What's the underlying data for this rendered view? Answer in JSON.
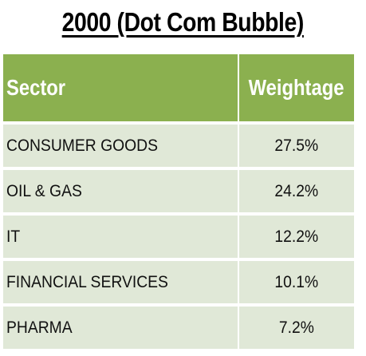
{
  "title": "2000 (Dot Com Bubble)",
  "table": {
    "headers": [
      "Sector",
      "Weightage"
    ],
    "rows": [
      {
        "sector": "CONSUMER GOODS",
        "weightage": "27.5%"
      },
      {
        "sector": "OIL & GAS",
        "weightage": "24.2%"
      },
      {
        "sector": "IT",
        "weightage": "12.2%"
      },
      {
        "sector": "FINANCIAL SERVICES",
        "weightage": "10.1%"
      },
      {
        "sector": "PHARMA",
        "weightage": "7.2%"
      }
    ]
  },
  "colors": {
    "header_bg": "#8bb04f",
    "row_bg": "#e0e8d7",
    "header_text": "#ffffff",
    "body_text": "#111111"
  }
}
